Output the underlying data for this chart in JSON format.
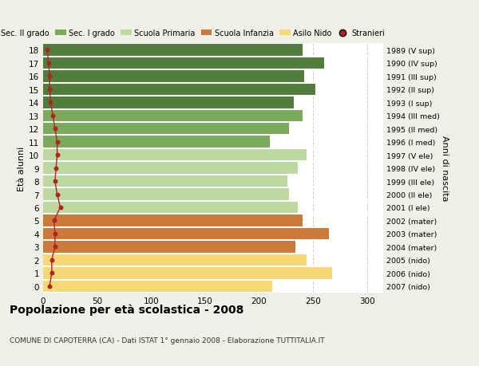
{
  "ages": [
    18,
    17,
    16,
    15,
    14,
    13,
    12,
    11,
    10,
    9,
    8,
    7,
    6,
    5,
    4,
    3,
    2,
    1,
    0
  ],
  "bar_values": [
    240,
    260,
    242,
    252,
    232,
    240,
    228,
    210,
    244,
    236,
    226,
    228,
    236,
    240,
    265,
    234,
    244,
    268,
    212
  ],
  "stranieri_values": [
    4,
    5,
    6,
    6,
    7,
    9,
    11,
    13,
    13,
    12,
    11,
    13,
    16,
    10,
    11,
    11,
    8,
    8,
    6
  ],
  "right_labels": [
    "1989 (V sup)",
    "1990 (IV sup)",
    "1991 (III sup)",
    "1992 (II sup)",
    "1993 (I sup)",
    "1994 (III med)",
    "1995 (II med)",
    "1996 (I med)",
    "1997 (V ele)",
    "1998 (IV ele)",
    "1999 (III ele)",
    "2000 (II ele)",
    "2001 (I ele)",
    "2002 (mater)",
    "2003 (mater)",
    "2004 (mater)",
    "2005 (nido)",
    "2006 (nido)",
    "2007 (nido)"
  ],
  "bar_colors": [
    "#4e7d3c",
    "#4e7d3c",
    "#4e7d3c",
    "#4e7d3c",
    "#4e7d3c",
    "#7aaa5a",
    "#7aaa5a",
    "#7aaa5a",
    "#bdd9a0",
    "#bdd9a0",
    "#bdd9a0",
    "#bdd9a0",
    "#bdd9a0",
    "#cc7a3a",
    "#cc7a3a",
    "#cc7a3a",
    "#f5d878",
    "#f5d878",
    "#f5d878"
  ],
  "legend_labels": [
    "Sec. II grado",
    "Sec. I grado",
    "Scuola Primaria",
    "Scuola Infanzia",
    "Asilo Nido",
    "Stranieri"
  ],
  "legend_colors": [
    "#4e7d3c",
    "#7aaa5a",
    "#bdd9a0",
    "#cc7a3a",
    "#f5d878",
    "#b22222"
  ],
  "title": "Popolazione per età scolastica - 2008",
  "subtitle": "COMUNE DI CAPOTERRA (CA) - Dati ISTAT 1° gennaio 2008 - Elaborazione TUTTITALIA.IT",
  "ylabel": "Età alunni",
  "right_ylabel": "Anni di nascita",
  "xlabel_vals": [
    0,
    50,
    100,
    150,
    200,
    250,
    300
  ],
  "xlim": [
    0,
    315
  ],
  "ylim": [
    -0.5,
    18.5
  ],
  "fig_bg_color": "#f0f0e8",
  "plot_bg_color": "#ffffff",
  "stranieri_color": "#b22222",
  "grid_color": "#cccccc"
}
